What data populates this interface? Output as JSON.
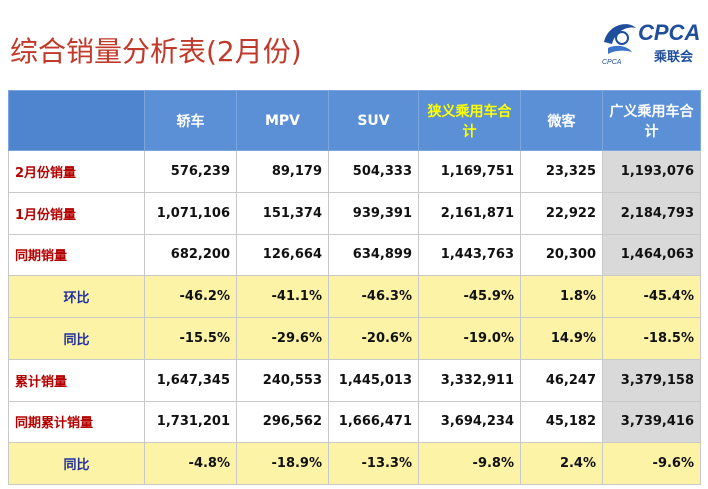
{
  "title": "综合销量分析表(2月份)",
  "logo": {
    "text": "CPCA",
    "sub": "乘联会",
    "small": "CPCA"
  },
  "table": {
    "headers": [
      "",
      "轿车",
      "MPV",
      "SUV",
      "狭义乘用车合计",
      "微客",
      "广义乘用车合计"
    ],
    "rows": [
      {
        "label": "2月份销量",
        "values": [
          "576,239",
          "89,179",
          "504,333",
          "1,169,751",
          "23,325",
          "1,193,076"
        ]
      },
      {
        "label": "1月份销量",
        "values": [
          "1,071,106",
          "151,374",
          "939,391",
          "2,161,871",
          "22,922",
          "2,184,793"
        ]
      },
      {
        "label": "同期销量",
        "values": [
          "682,200",
          "126,664",
          "634,899",
          "1,443,763",
          "20,300",
          "1,464,063"
        ]
      },
      {
        "label": "环比",
        "values": [
          "-46.2%",
          "-41.1%",
          "-46.3%",
          "-45.9%",
          "1.8%",
          "-45.4%"
        ]
      },
      {
        "label": "同比",
        "values": [
          "-15.5%",
          "-29.6%",
          "-20.6%",
          "-19.0%",
          "14.9%",
          "-18.5%"
        ]
      },
      {
        "label": "累计销量",
        "values": [
          "1,647,345",
          "240,553",
          "1,445,013",
          "3,332,911",
          "46,247",
          "3,379,158"
        ]
      },
      {
        "label": "同期累计销量",
        "values": [
          "1,731,201",
          "296,562",
          "1,666,471",
          "3,694,234",
          "45,182",
          "3,739,416"
        ]
      },
      {
        "label": "同比",
        "values": [
          "-4.8%",
          "-18.9%",
          "-13.3%",
          "-9.8%",
          "2.4%",
          "-9.6%"
        ]
      }
    ]
  },
  "colors": {
    "header_bg": "#5b8fd6",
    "highlight_text": "#ffff00",
    "ratio_row_bg": "#fcf3a6",
    "last_col_bg": "#d9d9d9",
    "title": "#c0392b"
  }
}
